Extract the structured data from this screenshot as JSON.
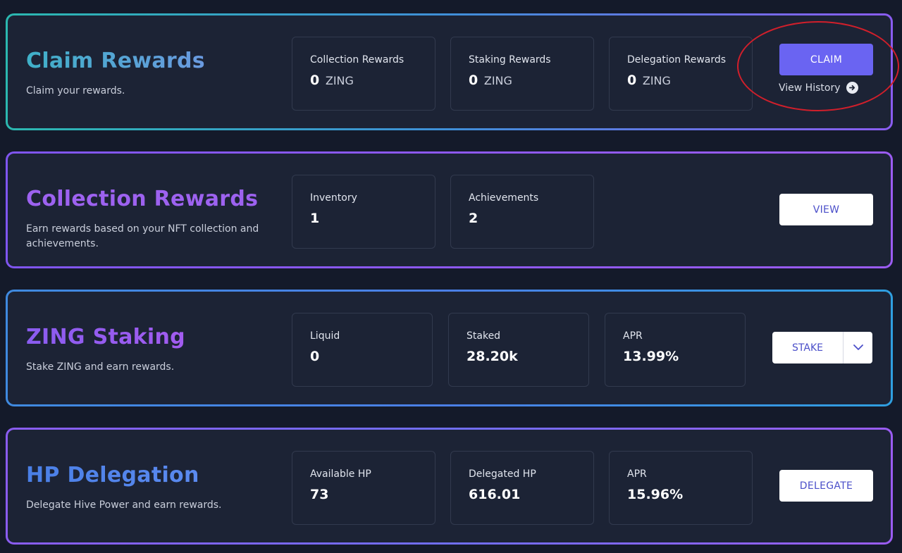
{
  "claim": {
    "title": "Claim Rewards",
    "subtitle": "Claim your rewards.",
    "stats": [
      {
        "label": "Collection Rewards",
        "value": "0",
        "unit": "ZING"
      },
      {
        "label": "Staking Rewards",
        "value": "0",
        "unit": "ZING"
      },
      {
        "label": "Delegation Rewards",
        "value": "0",
        "unit": "ZING"
      }
    ],
    "button_label": "CLAIM",
    "history_label": "View History"
  },
  "collection": {
    "title": "Collection Rewards",
    "subtitle": "Earn rewards based on your NFT collection and achievements.",
    "stats": [
      {
        "label": "Inventory",
        "value": "1"
      },
      {
        "label": "Achievements",
        "value": "2"
      }
    ],
    "button_label": "VIEW"
  },
  "staking": {
    "title": "ZING Staking",
    "subtitle": "Stake ZING and earn rewards.",
    "stats": [
      {
        "label": "Liquid",
        "value": "0"
      },
      {
        "label": "Staked",
        "value": "28.20k"
      },
      {
        "label": "APR",
        "value": "13.99%"
      }
    ],
    "button_label": "STAKE"
  },
  "delegation": {
    "title": "HP Delegation",
    "subtitle": "Delegate Hive Power and earn rewards.",
    "stats": [
      {
        "label": "Available HP",
        "value": "73"
      },
      {
        "label": "Delegated HP",
        "value": "616.01"
      },
      {
        "label": "APR",
        "value": "15.96%"
      }
    ],
    "button_label": "DELEGATE"
  },
  "colors": {
    "background": "#141a2a",
    "card": "#1c2335",
    "primary_button": "#6a64f2",
    "annotation": "#d11f2b"
  },
  "icons": {
    "history": "arrow-right-circle-icon",
    "dropdown": "chevron-down-icon"
  }
}
